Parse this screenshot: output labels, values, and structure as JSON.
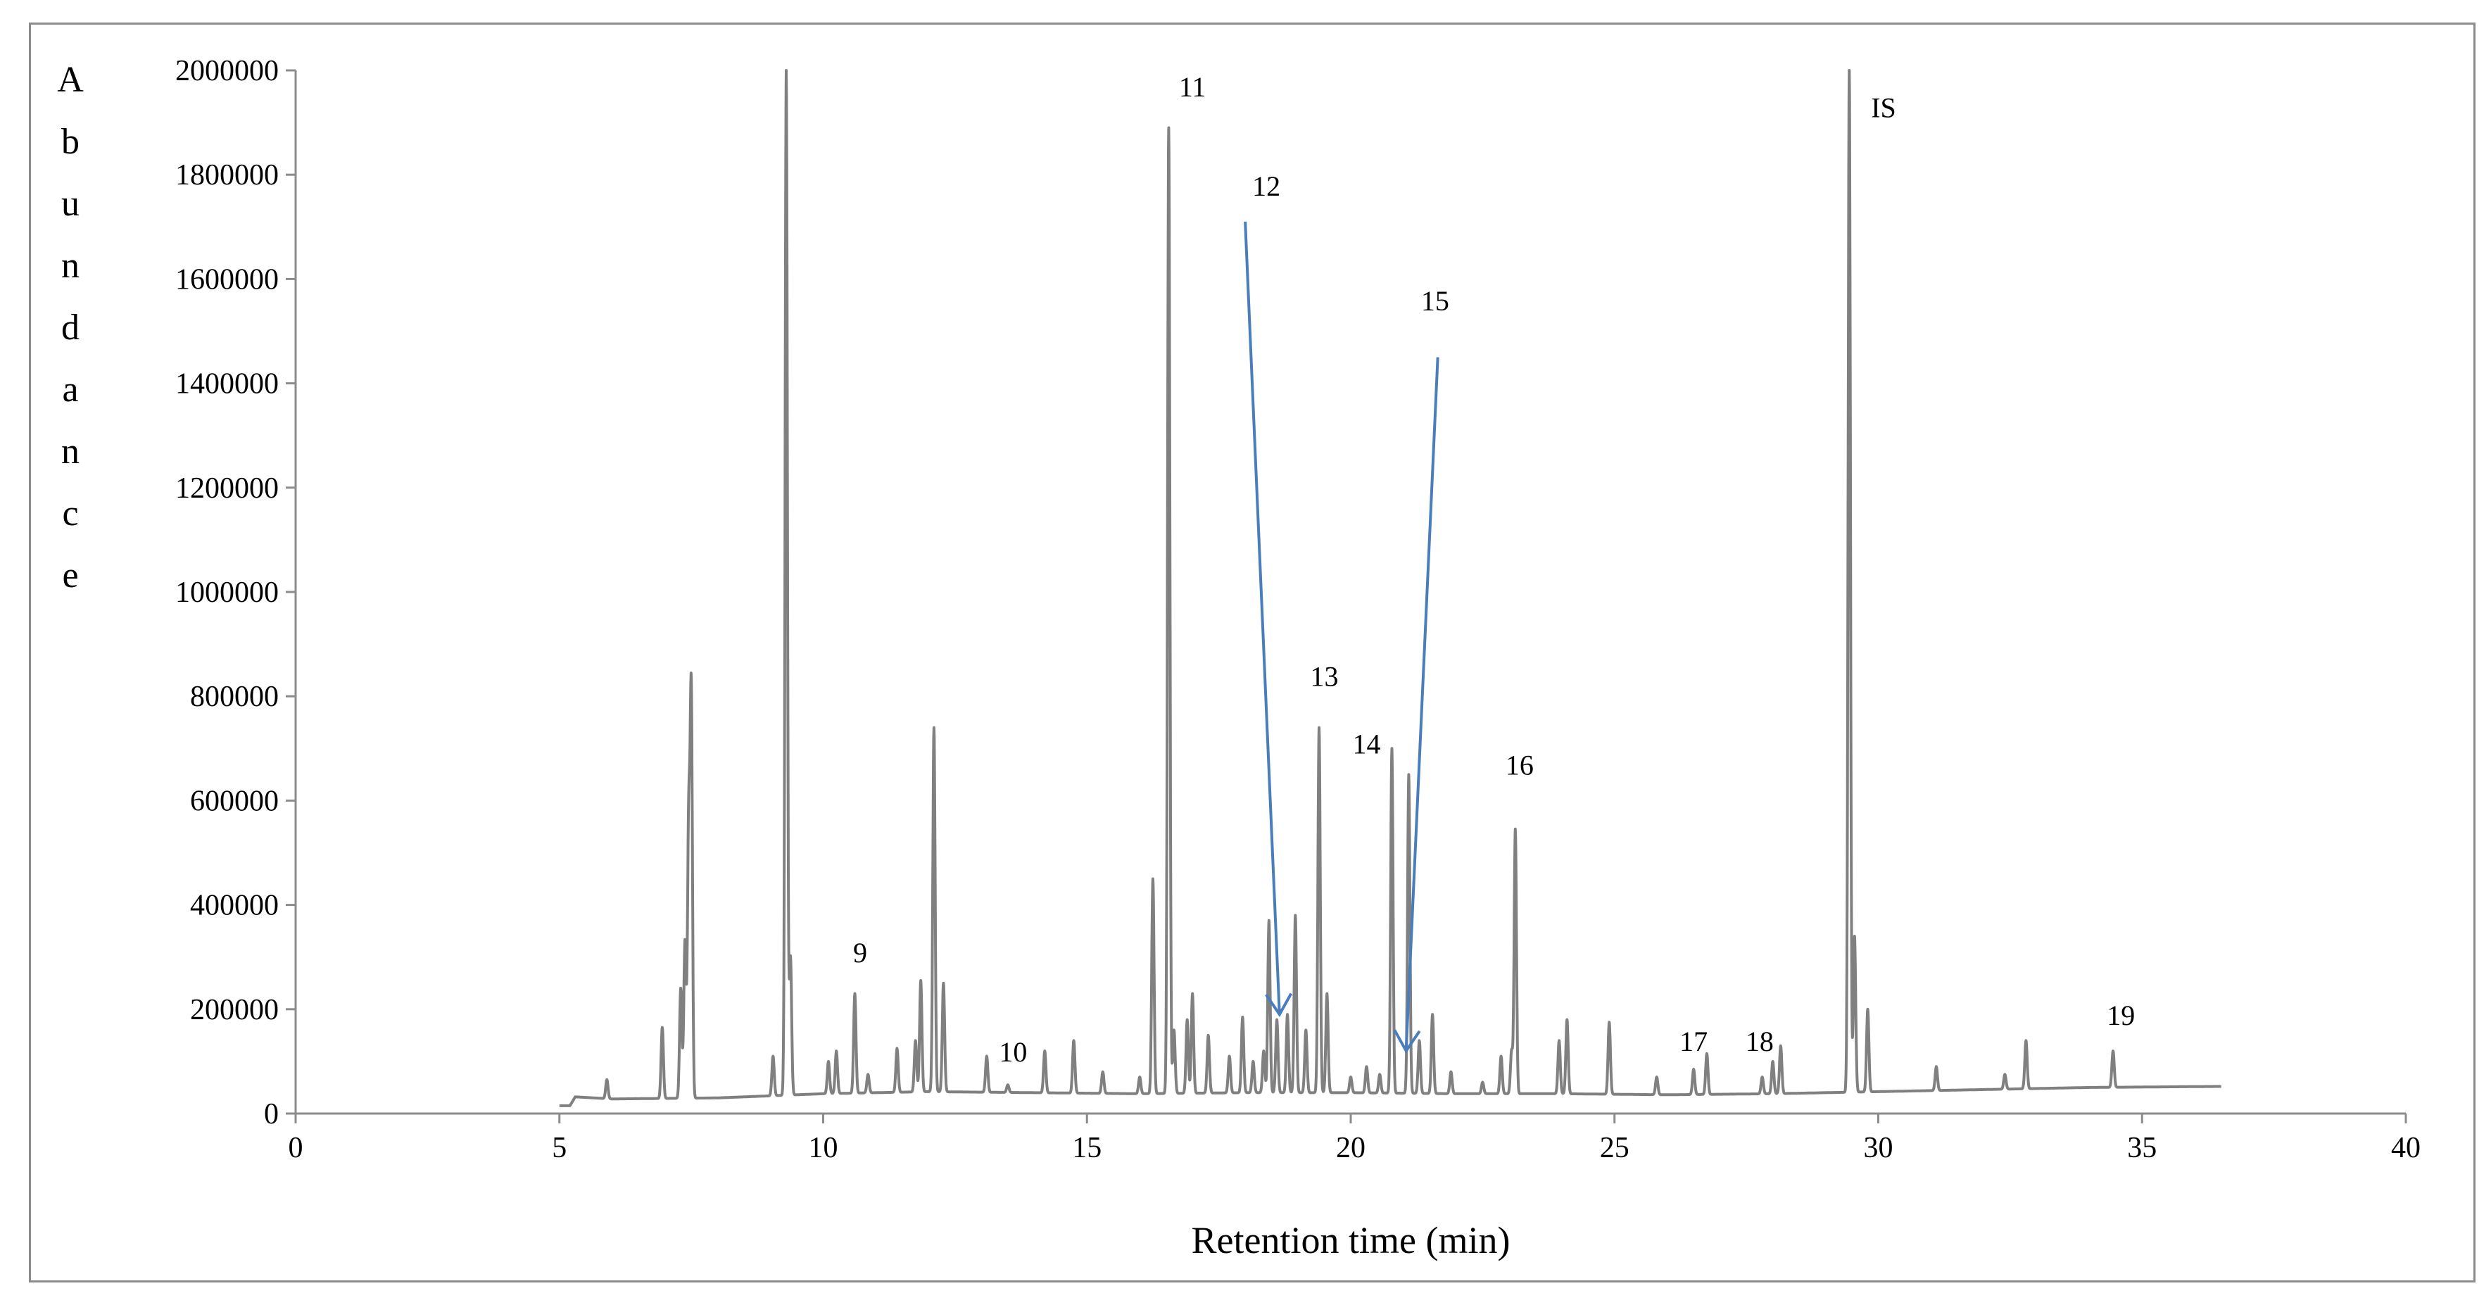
{
  "chart_data": {
    "type": "line",
    "title": "",
    "xlabel": "Retention time (min)",
    "ylabel": "Abundance",
    "xlim": [
      0,
      40
    ],
    "ylim": [
      0,
      2000000
    ],
    "x_ticks": [
      0,
      5,
      10,
      15,
      20,
      25,
      30,
      35,
      40
    ],
    "y_ticks": [
      0,
      200000,
      400000,
      600000,
      800000,
      1000000,
      1200000,
      1400000,
      1600000,
      1800000,
      2000000
    ],
    "grid": false,
    "legend": "none",
    "series": [
      {
        "color": "#808080",
        "baseline": [
          [
            5.0,
            15000
          ],
          [
            5.2,
            15000
          ],
          [
            5.3,
            32000
          ],
          [
            6.0,
            28000
          ],
          [
            8.0,
            30000
          ],
          [
            10.0,
            38000
          ],
          [
            12.0,
            42000
          ],
          [
            14.0,
            40000
          ],
          [
            16.0,
            38000
          ],
          [
            18.0,
            40000
          ],
          [
            20.0,
            40000
          ],
          [
            22.0,
            38000
          ],
          [
            24.0,
            38000
          ],
          [
            26.0,
            36000
          ],
          [
            28.0,
            38000
          ],
          [
            30.0,
            42000
          ],
          [
            32.0,
            46000
          ],
          [
            34.0,
            50000
          ],
          [
            36.5,
            52000
          ]
        ],
        "peaks": [
          [
            5.9,
            65000
          ],
          [
            6.95,
            165000
          ],
          [
            7.3,
            240000
          ],
          [
            7.38,
            330000
          ],
          [
            7.45,
            550000
          ],
          [
            7.5,
            800000
          ],
          [
            9.05,
            110000
          ],
          [
            9.3,
            2000000
          ],
          [
            9.38,
            300000
          ],
          [
            10.1,
            100000
          ],
          [
            10.25,
            120000
          ],
          [
            10.6,
            230000
          ],
          [
            10.85,
            75000
          ],
          [
            11.4,
            125000
          ],
          [
            11.75,
            140000
          ],
          [
            11.85,
            255000
          ],
          [
            12.1,
            740000
          ],
          [
            12.28,
            250000
          ],
          [
            13.1,
            110000
          ],
          [
            13.5,
            55000
          ],
          [
            14.2,
            120000
          ],
          [
            14.75,
            140000
          ],
          [
            15.3,
            80000
          ],
          [
            16.0,
            70000
          ],
          [
            16.25,
            450000
          ],
          [
            16.55,
            1890000
          ],
          [
            16.65,
            160000
          ],
          [
            16.9,
            180000
          ],
          [
            17.0,
            230000
          ],
          [
            17.3,
            150000
          ],
          [
            17.7,
            110000
          ],
          [
            17.95,
            185000
          ],
          [
            18.15,
            100000
          ],
          [
            18.35,
            120000
          ],
          [
            18.45,
            370000
          ],
          [
            18.6,
            180000
          ],
          [
            18.8,
            190000
          ],
          [
            18.95,
            380000
          ],
          [
            19.15,
            160000
          ],
          [
            19.4,
            740000
          ],
          [
            19.55,
            230000
          ],
          [
            20.0,
            70000
          ],
          [
            20.3,
            90000
          ],
          [
            20.55,
            75000
          ],
          [
            20.78,
            700000
          ],
          [
            21.1,
            650000
          ],
          [
            21.3,
            140000
          ],
          [
            21.55,
            190000
          ],
          [
            21.9,
            80000
          ],
          [
            22.5,
            60000
          ],
          [
            22.85,
            110000
          ],
          [
            23.05,
            120000
          ],
          [
            23.12,
            545000
          ],
          [
            23.95,
            140000
          ],
          [
            24.1,
            180000
          ],
          [
            24.9,
            175000
          ],
          [
            25.8,
            70000
          ],
          [
            26.5,
            85000
          ],
          [
            26.75,
            115000
          ],
          [
            27.8,
            70000
          ],
          [
            28.0,
            100000
          ],
          [
            28.15,
            130000
          ],
          [
            29.45,
            2000000
          ],
          [
            29.55,
            340000
          ],
          [
            29.8,
            200000
          ],
          [
            31.1,
            90000
          ],
          [
            32.4,
            75000
          ],
          [
            32.8,
            140000
          ],
          [
            34.45,
            120000
          ]
        ]
      }
    ],
    "peak_labels": [
      {
        "text": "9",
        "x": 10.7,
        "y": 290000
      },
      {
        "text": "10",
        "x": 13.6,
        "y": 100000
      },
      {
        "text": "11",
        "x": 17.0,
        "y": 1950000
      },
      {
        "text": "12",
        "x": 18.4,
        "y": 1760000
      },
      {
        "text": "13",
        "x": 19.5,
        "y": 820000
      },
      {
        "text": "14",
        "x": 20.3,
        "y": 690000
      },
      {
        "text": "15",
        "x": 21.6,
        "y": 1540000
      },
      {
        "text": "16",
        "x": 23.2,
        "y": 650000
      },
      {
        "text": "17",
        "x": 26.5,
        "y": 120000
      },
      {
        "text": "18",
        "x": 27.75,
        "y": 120000
      },
      {
        "text": "IS",
        "x": 30.1,
        "y": 1910000
      },
      {
        "text": "19",
        "x": 34.6,
        "y": 170000
      }
    ],
    "annotations": [
      {
        "type": "arrow",
        "color": "#4a7ebb",
        "from": [
          18.0,
          1710000
        ],
        "to": [
          18.65,
          190000
        ]
      },
      {
        "type": "arrow",
        "color": "#4a7ebb",
        "from": [
          21.65,
          1450000
        ],
        "to": [
          21.05,
          120000
        ]
      }
    ]
  }
}
